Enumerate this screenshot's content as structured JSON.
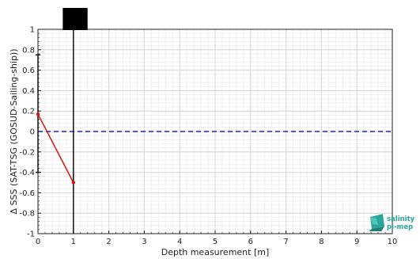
{
  "chart_data": {
    "type": "line",
    "xlabel": "Depth measurement [m]",
    "ylabel": "Δ SSS (SAT-TSG (GOSUD-Sailing-ship))",
    "xlim": [
      0,
      10
    ],
    "ylim": [
      -1,
      1
    ],
    "xticks": [
      "0",
      "1",
      "2",
      "3",
      "4",
      "5",
      "6",
      "7",
      "8",
      "9",
      "10"
    ],
    "yticks": [
      "1",
      "0.8",
      "0.6",
      "0.4",
      "0.2",
      "0",
      "-0.2",
      "-0.4",
      "-0.6",
      "-0.8",
      "-1"
    ],
    "grid": true,
    "series": [
      {
        "x": [
          0,
          1
        ],
        "y": [
          0.17,
          -0.5
        ],
        "color": "#dd1111",
        "style": "solid",
        "markers": true
      }
    ],
    "zero_line": {
      "y": 0,
      "color": "#2222cc",
      "style": "dashed"
    },
    "vertical_line": {
      "x": 1,
      "color": "#111111"
    },
    "errorbar": {
      "x": 0,
      "y_low": -0.4,
      "y_high": 0.75,
      "color": "#111111"
    },
    "top_box": {
      "x_from": 0.7,
      "x_to": 1.4,
      "color": "#000000"
    }
  },
  "logo": {
    "line1": "salinity",
    "line2": "pi-mep",
    "color": "#2aa79a"
  }
}
